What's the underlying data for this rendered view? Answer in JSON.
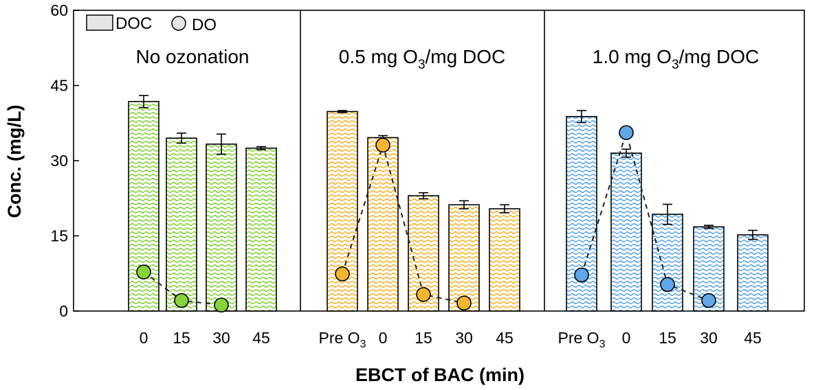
{
  "chart_data": {
    "type": "bar",
    "ylabel": "Conc. (mg/L)",
    "xlabel": "EBCT of BAC (min)",
    "ylim": [
      0,
      60
    ],
    "yticks": [
      "0",
      "15",
      "30",
      "45",
      "60"
    ],
    "legend": {
      "placement": "top-left",
      "items": [
        {
          "label": "DOC",
          "marker": "bar"
        },
        {
          "label": "DO",
          "marker": "circle"
        }
      ]
    },
    "panels": [
      {
        "title": "No ozonation",
        "color": "#86d33a",
        "categories": [
          "0",
          "15",
          "30",
          "45"
        ],
        "doc": [
          41.8,
          34.5,
          33.3,
          32.5
        ],
        "doc_err": [
          1.2,
          1.0,
          2.0,
          0.3
        ],
        "do": [
          7.8,
          2.1,
          1.2,
          null
        ]
      },
      {
        "title": "0.5 mg O3/mg DOC",
        "color": "#f5b52e",
        "categories": [
          "Pre O3",
          "0",
          "15",
          "30",
          "45"
        ],
        "doc": [
          39.8,
          34.6,
          23.0,
          21.2,
          20.4
        ],
        "doc_err": [
          0.2,
          0.4,
          0.6,
          0.8,
          0.8
        ],
        "do": [
          7.4,
          33.1,
          3.3,
          1.6,
          null
        ]
      },
      {
        "title": "1.0 mg O3/mg DOC",
        "color": "#5ea8e8",
        "categories": [
          "Pre O3",
          "0",
          "15",
          "30",
          "45"
        ],
        "doc": [
          38.8,
          31.5,
          19.3,
          16.8,
          15.2
        ],
        "doc_err": [
          1.2,
          0.8,
          2.0,
          0.3,
          0.9
        ],
        "do": [
          7.2,
          35.6,
          5.3,
          2.1,
          null
        ]
      }
    ]
  }
}
